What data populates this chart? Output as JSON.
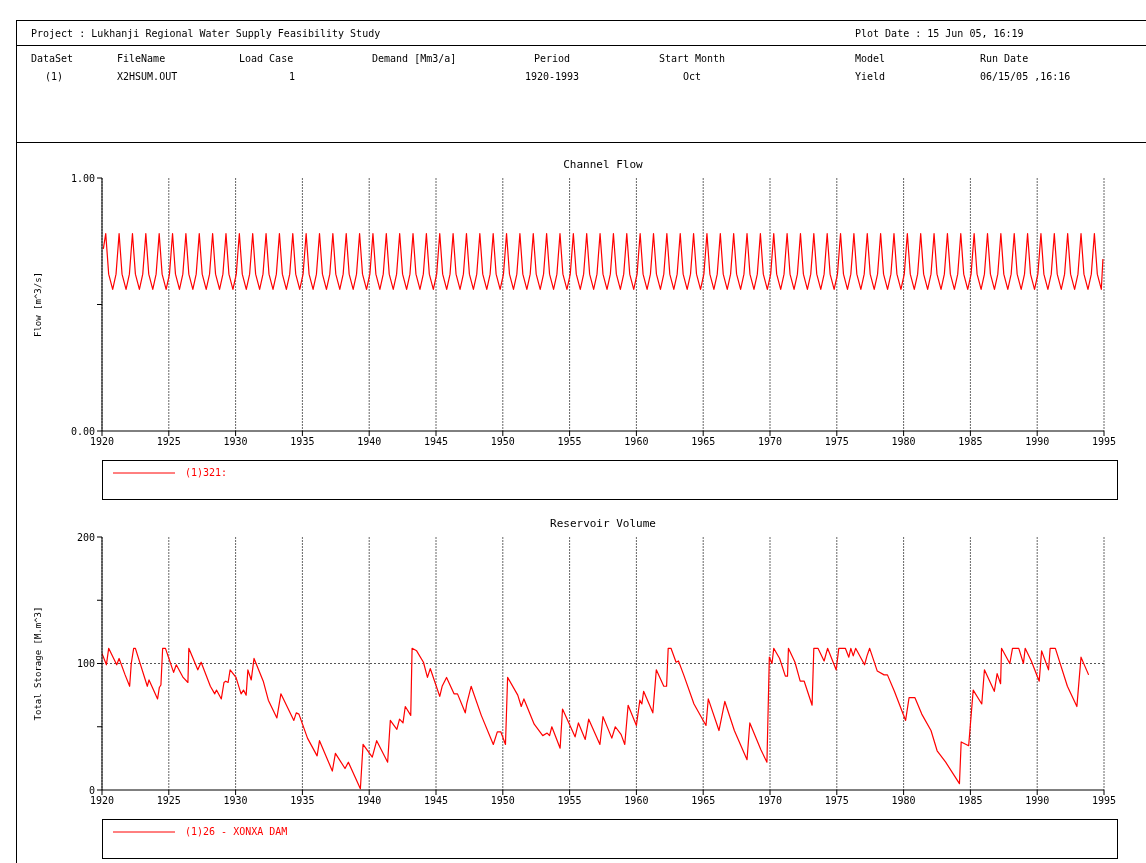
{
  "chart_data": [
    {
      "type": "line",
      "title": "Channel Flow",
      "ylabel": "Flow   [m^3/s]",
      "annotations": [
        "Project : Lukhanji Regional Water Supply Feasibility Study",
        "Plot Date : 15 Jun 05, 16:19",
        "DataSet",
        "FileName",
        "Load Case",
        "Demand [Mm3/a]",
        "Period",
        "Start Month",
        "Model",
        "Run Date",
        "(1)",
        "X2HSUM.OUT",
        "1",
        "1920-1993",
        "Oct",
        "Yield",
        "06/15/05 ,16:16"
      ],
      "xlim": [
        1920,
        1995
      ],
      "xticks": [
        1920,
        1925,
        1930,
        1935,
        1940,
        1945,
        1950,
        1955,
        1960,
        1965,
        1970,
        1975,
        1980,
        1985,
        1990,
        1995
      ],
      "ylim": [
        0,
        1
      ],
      "yticks": [
        {
          "value": 0,
          "label": "0.00"
        },
        {
          "value": 0.5,
          "label": null
        },
        {
          "value": 1,
          "label": "1.00"
        }
      ],
      "grid": "x",
      "legend": "bottom",
      "line_style": "solid",
      "series": [
        {
          "name": "(1)321:",
          "color": "#ff0000",
          "x": [
            1920.1,
            1920.28,
            1920.5,
            1920.8,
            1921.05,
            1921.28,
            1921.5,
            1921.8,
            1922.05,
            1922.28,
            1922.5,
            1922.8,
            1923.05,
            1923.28,
            1923.5,
            1923.8,
            1924.05,
            1924.28,
            1924.5,
            1924.8,
            1925.05,
            1925.28,
            1925.5,
            1925.8,
            1926.05,
            1926.28,
            1926.5,
            1926.8,
            1927.05,
            1927.28,
            1927.5,
            1927.8,
            1928.05,
            1928.28,
            1928.5,
            1928.8,
            1929.05,
            1929.28,
            1929.5,
            1929.8,
            1930.05,
            1930.28,
            1930.5,
            1930.8,
            1931.05,
            1931.28,
            1931.5,
            1931.8,
            1932.05,
            1932.28,
            1932.5,
            1932.8,
            1933.05,
            1933.28,
            1933.5,
            1933.8,
            1934.05,
            1934.28,
            1934.5,
            1934.8,
            1935.05,
            1935.28,
            1935.5,
            1935.8,
            1936.05,
            1936.28,
            1936.5,
            1936.8,
            1937.05,
            1937.28,
            1937.5,
            1937.8,
            1938.05,
            1938.28,
            1938.5,
            1938.8,
            1939.05,
            1939.28,
            1939.5,
            1939.8,
            1940.05,
            1940.28,
            1940.5,
            1940.8,
            1941.05,
            1941.28,
            1941.5,
            1941.8,
            1942.05,
            1942.28,
            1942.5,
            1942.8,
            1943.05,
            1943.28,
            1943.5,
            1943.8,
            1944.05,
            1944.28,
            1944.5,
            1944.8,
            1945.05,
            1945.28,
            1945.5,
            1945.8,
            1946.05,
            1946.28,
            1946.5,
            1946.8,
            1947.05,
            1947.28,
            1947.5,
            1947.8,
            1948.05,
            1948.28,
            1948.5,
            1948.8,
            1949.05,
            1949.28,
            1949.5,
            1949.8,
            1950.05,
            1950.28,
            1950.5,
            1950.8,
            1951.05,
            1951.28,
            1951.5,
            1951.8,
            1952.05,
            1952.28,
            1952.5,
            1952.8,
            1953.05,
            1953.28,
            1953.5,
            1953.8,
            1954.05,
            1954.28,
            1954.5,
            1954.8,
            1955.05,
            1955.28,
            1955.5,
            1955.8,
            1956.05,
            1956.28,
            1956.5,
            1956.8,
            1957.05,
            1957.28,
            1957.5,
            1957.8,
            1958.05,
            1958.28,
            1958.5,
            1958.8,
            1959.05,
            1959.28,
            1959.5,
            1959.8,
            1960.05,
            1960.28,
            1960.5,
            1960.8,
            1961.05,
            1961.28,
            1961.5,
            1961.8,
            1962.05,
            1962.28,
            1962.5,
            1962.8,
            1963.05,
            1963.28,
            1963.5,
            1963.8,
            1964.05,
            1964.28,
            1964.5,
            1964.8,
            1965.05,
            1965.28,
            1965.5,
            1965.8,
            1966.05,
            1966.28,
            1966.5,
            1966.8,
            1967.05,
            1967.28,
            1967.5,
            1967.8,
            1968.05,
            1968.28,
            1968.5,
            1968.8,
            1969.05,
            1969.28,
            1969.5,
            1969.8,
            1970.05,
            1970.28,
            1970.5,
            1970.8,
            1971.05,
            1971.28,
            1971.5,
            1971.8,
            1972.05,
            1972.28,
            1972.5,
            1972.8,
            1973.05,
            1973.28,
            1973.5,
            1973.8,
            1974.05,
            1974.28,
            1974.5,
            1974.8,
            1975.05,
            1975.28,
            1975.5,
            1975.8,
            1976.05,
            1976.28,
            1976.5,
            1976.8,
            1977.05,
            1977.28,
            1977.5,
            1977.8,
            1978.05,
            1978.28,
            1978.5,
            1978.8,
            1979.05,
            1979.28,
            1979.5,
            1979.8,
            1980.05,
            1980.28,
            1980.5,
            1980.8,
            1981.05,
            1981.28,
            1981.5,
            1981.8,
            1982.05,
            1982.28,
            1982.5,
            1982.8,
            1983.05,
            1983.28,
            1983.5,
            1983.8,
            1984.05,
            1984.28,
            1984.5,
            1984.8,
            1985.05,
            1985.28,
            1985.5,
            1985.8,
            1986.05,
            1986.28,
            1986.5,
            1986.8,
            1987.05,
            1987.28,
            1987.5,
            1987.8,
            1988.05,
            1988.28,
            1988.5,
            1988.8,
            1989.05,
            1989.28,
            1989.5,
            1989.8,
            1990.05,
            1990.28,
            1990.5,
            1990.8,
            1991.05,
            1991.28,
            1991.5,
            1991.8,
            1992.05,
            1992.28,
            1992.5,
            1992.8,
            1993.05,
            1993.28,
            1993.5,
            1993.8,
            1994.05,
            1994.28,
            1994.5,
            1994.8,
            1994.92
          ],
          "values": [
            0.72,
            0.78,
            0.62,
            0.56,
            0.62,
            0.78,
            0.62,
            0.56,
            0.62,
            0.78,
            0.62,
            0.56,
            0.62,
            0.78,
            0.62,
            0.56,
            0.62,
            0.78,
            0.62,
            0.56,
            0.62,
            0.78,
            0.62,
            0.56,
            0.62,
            0.78,
            0.62,
            0.56,
            0.62,
            0.78,
            0.62,
            0.56,
            0.62,
            0.78,
            0.62,
            0.56,
            0.62,
            0.78,
            0.62,
            0.56,
            0.62,
            0.78,
            0.62,
            0.56,
            0.62,
            0.78,
            0.62,
            0.56,
            0.62,
            0.78,
            0.62,
            0.56,
            0.62,
            0.78,
            0.62,
            0.56,
            0.62,
            0.78,
            0.62,
            0.56,
            0.62,
            0.78,
            0.62,
            0.56,
            0.62,
            0.78,
            0.62,
            0.56,
            0.62,
            0.78,
            0.62,
            0.56,
            0.62,
            0.78,
            0.62,
            0.56,
            0.62,
            0.78,
            0.62,
            0.56,
            0.62,
            0.78,
            0.62,
            0.56,
            0.62,
            0.78,
            0.62,
            0.56,
            0.62,
            0.78,
            0.62,
            0.56,
            0.62,
            0.78,
            0.62,
            0.56,
            0.62,
            0.78,
            0.62,
            0.56,
            0.62,
            0.78,
            0.62,
            0.56,
            0.62,
            0.78,
            0.62,
            0.56,
            0.62,
            0.78,
            0.62,
            0.56,
            0.62,
            0.78,
            0.62,
            0.56,
            0.62,
            0.78,
            0.62,
            0.56,
            0.62,
            0.78,
            0.62,
            0.56,
            0.62,
            0.78,
            0.62,
            0.56,
            0.62,
            0.78,
            0.62,
            0.56,
            0.62,
            0.78,
            0.62,
            0.56,
            0.62,
            0.78,
            0.62,
            0.56,
            0.62,
            0.78,
            0.62,
            0.56,
            0.62,
            0.78,
            0.62,
            0.56,
            0.62,
            0.78,
            0.62,
            0.56,
            0.62,
            0.78,
            0.62,
            0.56,
            0.62,
            0.78,
            0.62,
            0.56,
            0.62,
            0.78,
            0.62,
            0.56,
            0.62,
            0.78,
            0.62,
            0.56,
            0.62,
            0.78,
            0.62,
            0.56,
            0.62,
            0.78,
            0.62,
            0.56,
            0.62,
            0.78,
            0.62,
            0.56,
            0.62,
            0.78,
            0.62,
            0.56,
            0.62,
            0.78,
            0.62,
            0.56,
            0.62,
            0.78,
            0.62,
            0.56,
            0.62,
            0.78,
            0.62,
            0.56,
            0.62,
            0.78,
            0.62,
            0.56,
            0.62,
            0.78,
            0.62,
            0.56,
            0.62,
            0.78,
            0.62,
            0.56,
            0.62,
            0.78,
            0.62,
            0.56,
            0.62,
            0.78,
            0.62,
            0.56,
            0.62,
            0.78,
            0.62,
            0.56,
            0.62,
            0.78,
            0.62,
            0.56,
            0.62,
            0.78,
            0.62,
            0.56,
            0.62,
            0.78,
            0.62,
            0.56,
            0.62,
            0.78,
            0.62,
            0.56,
            0.62,
            0.78,
            0.62,
            0.56,
            0.62,
            0.78,
            0.62,
            0.56,
            0.62,
            0.78,
            0.62,
            0.56,
            0.62,
            0.78,
            0.62,
            0.56,
            0.62,
            0.78,
            0.62,
            0.56,
            0.62,
            0.78,
            0.62,
            0.56,
            0.62,
            0.78,
            0.62,
            0.56,
            0.62,
            0.78,
            0.62,
            0.56,
            0.62,
            0.78,
            0.62,
            0.56,
            0.62,
            0.78,
            0.62,
            0.56,
            0.62,
            0.78,
            0.62,
            0.56,
            0.62,
            0.78,
            0.62,
            0.56,
            0.62,
            0.78,
            0.62,
            0.56,
            0.62,
            0.78,
            0.62,
            0.56,
            0.62,
            0.78,
            0.62,
            0.56,
            0.62,
            0.78,
            0.62,
            0.56,
            0.68
          ]
        }
      ]
    },
    {
      "type": "line",
      "title": "Reservoir Volume",
      "ylabel": "Total Storage   [M.m^3]",
      "xlim": [
        1920,
        1995
      ],
      "xticks": [
        1920,
        1925,
        1930,
        1935,
        1940,
        1945,
        1950,
        1955,
        1960,
        1965,
        1970,
        1975,
        1980,
        1985,
        1990,
        1995
      ],
      "ylim": [
        0,
        200
      ],
      "yticks": [
        0,
        {
          "value": 50,
          "label": null
        },
        100,
        {
          "value": 150,
          "label": null
        },
        200
      ],
      "grid": "x",
      "legend": "bottom",
      "line_style": "solid",
      "ref_lines": [
        {
          "axis": "y",
          "value": 100,
          "color": "#555555",
          "line_style": "dotted"
        }
      ],
      "series": [
        {
          "name": "(1)26 - XONXA DAM",
          "color": "#ff0000",
          "x": [
            1920.0,
            1920.33,
            1920.5,
            1921.1,
            1921.28,
            1921.73,
            1922.07,
            1922.19,
            1922.37,
            1922.5,
            1923.39,
            1923.52,
            1924.16,
            1924.29,
            1924.41,
            1924.54,
            1924.75,
            1925.36,
            1925.56,
            1926.07,
            1926.43,
            1926.5,
            1927.17,
            1927.42,
            1928.11,
            1928.44,
            1928.57,
            1928.93,
            1929.13,
            1929.26,
            1929.44,
            1929.59,
            1930.03,
            1930.41,
            1930.59,
            1930.79,
            1930.92,
            1931.17,
            1931.38,
            1932.07,
            1932.45,
            1933.09,
            1933.39,
            1934.36,
            1934.54,
            1934.74,
            1935.38,
            1936.1,
            1936.28,
            1937.24,
            1937.47,
            1938.19,
            1938.44,
            1939.34,
            1939.54,
            1940.23,
            1940.56,
            1941.38,
            1941.58,
            1942.07,
            1942.27,
            1942.53,
            1942.7,
            1943.11,
            1943.21,
            1943.55,
            1944.06,
            1944.36,
            1944.57,
            1945.28,
            1945.46,
            1945.79,
            1946.35,
            1946.61,
            1947.19,
            1947.3,
            1947.63,
            1948.39,
            1949.29,
            1949.59,
            1949.85,
            1950.2,
            1950.36,
            1951.12,
            1951.38,
            1951.58,
            1952.35,
            1952.99,
            1953.32,
            1953.5,
            1953.67,
            1954.29,
            1954.47,
            1955.41,
            1955.66,
            1956.17,
            1956.43,
            1957.27,
            1957.5,
            1958.16,
            1958.42,
            1958.85,
            1959.13,
            1959.38,
            1960.0,
            1960.26,
            1960.41,
            1960.54,
            1961.23,
            1961.49,
            1962.05,
            1962.26,
            1962.38,
            1962.59,
            1962.97,
            1963.15,
            1963.54,
            1964.31,
            1965.21,
            1965.38,
            1966.18,
            1966.62,
            1967.33,
            1968.28,
            1968.49,
            1969.31,
            1969.77,
            1969.95,
            1970.15,
            1970.28,
            1970.72,
            1971.15,
            1971.31,
            1971.38,
            1971.87,
            1972.26,
            1972.56,
            1973.15,
            1973.28,
            1973.59,
            1974.05,
            1974.31,
            1974.95,
            1975.15,
            1975.64,
            1975.9,
            1976.05,
            1976.23,
            1976.41,
            1977.08,
            1977.26,
            1977.46,
            1978.03,
            1978.54,
            1978.79,
            1979.31,
            1980.15,
            1980.41,
            1980.85,
            1981.36,
            1982.05,
            1982.51,
            1983.15,
            1984.18,
            1984.31,
            1984.87,
            1985.21,
            1985.85,
            1986.05,
            1986.79,
            1987.0,
            1987.26,
            1987.33,
            1987.95,
            1988.15,
            1988.62,
            1988.97,
            1989.1,
            1989.56,
            1990.15,
            1990.33,
            1990.85,
            1990.97,
            1991.36,
            1992.26,
            1992.97,
            1993.28,
            1993.85
          ],
          "values": [
            108,
            99,
            112,
            99,
            104,
            91,
            82,
            100,
            112,
            112,
            82,
            87,
            72,
            81,
            83,
            112,
            112,
            93,
            99,
            89,
            85,
            112,
            95,
            101,
            82,
            76,
            79,
            72,
            85,
            86,
            85,
            95,
            89,
            76,
            79,
            75,
            95,
            87,
            104,
            86,
            71,
            57,
            76,
            55,
            61,
            60,
            41,
            27,
            39,
            15,
            29,
            17,
            22,
            1,
            36,
            26,
            39,
            22,
            55,
            48,
            56,
            53,
            66,
            59,
            112,
            110,
            101,
            89,
            96,
            74,
            82,
            89,
            76,
            76,
            61,
            68,
            82,
            59,
            36,
            46,
            46,
            36,
            89,
            75,
            66,
            72,
            52,
            43,
            45,
            43,
            50,
            33,
            64,
            42,
            53,
            40,
            56,
            36,
            58,
            41,
            50,
            44,
            36,
            67,
            51,
            71,
            68,
            78,
            61,
            95,
            82,
            82,
            112,
            112,
            101,
            102,
            91,
            68,
            51,
            72,
            47,
            70,
            47,
            24,
            53,
            32,
            22,
            105,
            100,
            112,
            104,
            90,
            90,
            112,
            101,
            86,
            86,
            67,
            112,
            112,
            102,
            112,
            95,
            112,
            112,
            105,
            112,
            106,
            112,
            99,
            106,
            112,
            94,
            91,
            91,
            78,
            55,
            73,
            73,
            60,
            47,
            31,
            22,
            5,
            38,
            35,
            79,
            68,
            95,
            78,
            92,
            84,
            112,
            100,
            112,
            112,
            100,
            112,
            102,
            86,
            110,
            95,
            112,
            112,
            82,
            66,
            105,
            91
          ]
        }
      ]
    }
  ]
}
